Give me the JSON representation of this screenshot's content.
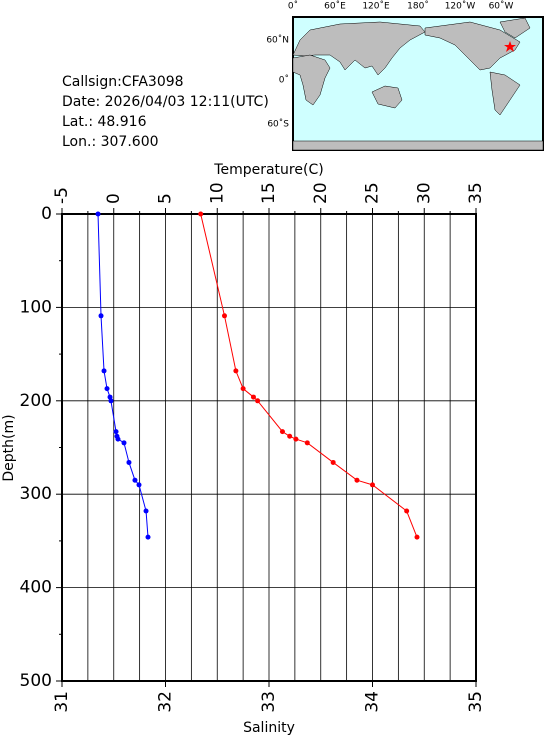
{
  "info": [
    "Callsign:CFA3098",
    "Date:  2026/04/03 12:11(UTC)",
    "Lat.:   48.916",
    "Lon.:   307.600"
  ],
  "map": {
    "lon_labels": [
      "0˚",
      "60˚E",
      "120˚E",
      "180˚",
      "120˚W",
      "60˚W"
    ],
    "lat_labels": [
      "60˚N",
      "0˚",
      "60˚S"
    ]
  },
  "chart_data": {
    "type": "profile",
    "ylabel": "Depth(m)",
    "ylim": [
      0,
      500
    ],
    "yticks": [
      0,
      100,
      200,
      300,
      400,
      500
    ],
    "yminorticks": [
      50,
      150,
      250,
      350,
      450
    ],
    "depth": [
      0,
      109,
      168,
      187,
      196,
      200,
      233,
      238,
      241,
      245,
      266,
      285,
      290,
      318,
      346
    ],
    "top_axis": {
      "label": "Temperature(C)",
      "lim": [
        -5,
        35
      ],
      "ticks": [
        -5,
        0,
        5,
        10,
        15,
        20,
        25,
        30,
        35
      ],
      "minorticks": [
        -2.5,
        2.5,
        7.5,
        12.5,
        17.5,
        22.5,
        27.5,
        32.5
      ]
    },
    "bottom_axis": {
      "label": "Salinity",
      "lim": [
        31,
        35
      ],
      "ticks": [
        31,
        32,
        33,
        34,
        35
      ]
    },
    "grid": true,
    "series": [
      {
        "xaxis": "top",
        "color": "#0000ff",
        "values": [
          -1.52,
          -1.23,
          -0.94,
          -0.65,
          -0.36,
          -0.27,
          0.22,
          0.31,
          0.41,
          0.99,
          1.47,
          2.05,
          2.44,
          3.12,
          3.31
        ]
      },
      {
        "xaxis": "bottom",
        "color": "#ff0000",
        "values": [
          32.34,
          32.57,
          32.68,
          32.75,
          32.85,
          32.89,
          33.13,
          33.2,
          33.26,
          33.37,
          33.62,
          33.85,
          34.0,
          34.33,
          34.43
        ]
      }
    ]
  }
}
